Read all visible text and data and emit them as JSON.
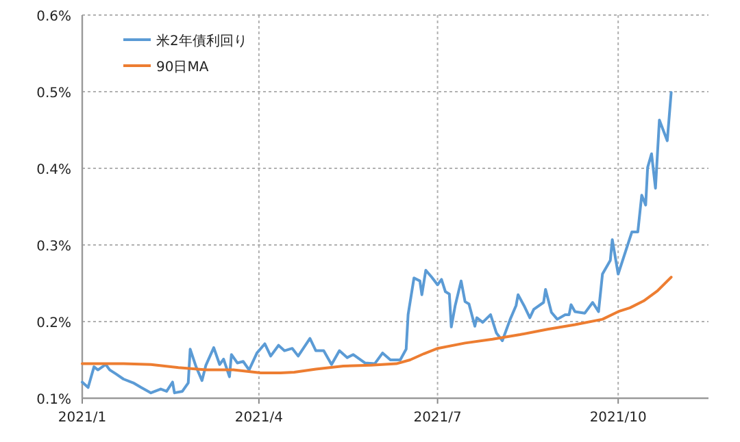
{
  "chart_data": {
    "type": "line",
    "xlim": [
      "2021-01-01",
      "2021-11-16"
    ],
    "ylim": [
      0.1,
      0.6
    ],
    "xticks": [
      {
        "value": "2021-01-01",
        "label": "2021/1"
      },
      {
        "value": "2021-04-01",
        "label": "2021/4"
      },
      {
        "value": "2021-07-01",
        "label": "2021/7"
      },
      {
        "value": "2021-10-01",
        "label": "2021/10"
      }
    ],
    "yticks": [
      {
        "value": 0.1,
        "label": "0.1%"
      },
      {
        "value": 0.2,
        "label": "0.2%"
      },
      {
        "value": 0.3,
        "label": "0.3%"
      },
      {
        "value": 0.4,
        "label": "0.4%"
      },
      {
        "value": 0.5,
        "label": "0.5%"
      },
      {
        "value": 0.6,
        "label": "0.6%"
      }
    ],
    "grid": true,
    "legend": "top left",
    "series": [
      {
        "name": "米2年債利回り",
        "color": "#5b9bd5",
        "x": [
          "2021-01-01",
          "2021-01-04",
          "2021-01-07",
          "2021-01-09",
          "2021-01-13",
          "2021-01-15",
          "2021-01-18",
          "2021-01-22",
          "2021-01-27",
          "2021-01-31",
          "2021-02-05",
          "2021-02-10",
          "2021-02-13",
          "2021-02-16",
          "2021-02-17",
          "2021-02-21",
          "2021-02-24",
          "2021-02-25",
          "2021-02-28",
          "2021-03-03",
          "2021-03-05",
          "2021-03-09",
          "2021-03-12",
          "2021-03-14",
          "2021-03-17",
          "2021-03-18",
          "2021-03-21",
          "2021-03-24",
          "2021-03-27",
          "2021-03-31",
          "2021-04-04",
          "2021-04-07",
          "2021-04-11",
          "2021-04-14",
          "2021-04-18",
          "2021-04-21",
          "2021-04-27",
          "2021-04-30",
          "2021-05-04",
          "2021-05-08",
          "2021-05-12",
          "2021-05-16",
          "2021-05-19",
          "2021-05-25",
          "2021-05-30",
          "2021-06-03",
          "2021-06-07",
          "2021-06-12",
          "2021-06-15",
          "2021-06-16",
          "2021-06-19",
          "2021-06-22",
          "2021-06-23",
          "2021-06-25",
          "2021-06-28",
          "2021-07-01",
          "2021-07-03",
          "2021-07-05",
          "2021-07-07",
          "2021-07-08",
          "2021-07-10",
          "2021-07-13",
          "2021-07-15",
          "2021-07-17",
          "2021-07-20",
          "2021-07-21",
          "2021-07-24",
          "2021-07-28",
          "2021-07-31",
          "2021-08-03",
          "2021-08-07",
          "2021-08-10",
          "2021-08-11",
          "2021-08-14",
          "2021-08-17",
          "2021-08-19",
          "2021-08-24",
          "2021-08-25",
          "2021-08-28",
          "2021-08-31",
          "2021-09-04",
          "2021-09-06",
          "2021-09-07",
          "2021-09-09",
          "2021-09-14",
          "2021-09-18",
          "2021-09-21",
          "2021-09-23",
          "2021-09-27",
          "2021-09-28",
          "2021-10-01",
          "2021-10-08",
          "2021-10-11",
          "2021-10-13",
          "2021-10-15",
          "2021-10-16",
          "2021-10-18",
          "2021-10-20",
          "2021-10-22",
          "2021-10-26",
          "2021-10-28"
        ],
        "values": [
          0.121,
          0.114,
          0.141,
          0.137,
          0.144,
          0.137,
          0.132,
          0.125,
          0.12,
          0.114,
          0.107,
          0.112,
          0.109,
          0.121,
          0.107,
          0.109,
          0.12,
          0.164,
          0.141,
          0.123,
          0.143,
          0.166,
          0.144,
          0.151,
          0.128,
          0.157,
          0.146,
          0.148,
          0.137,
          0.159,
          0.171,
          0.155,
          0.169,
          0.162,
          0.165,
          0.155,
          0.178,
          0.162,
          0.162,
          0.144,
          0.162,
          0.153,
          0.157,
          0.146,
          0.145,
          0.159,
          0.15,
          0.15,
          0.164,
          0.209,
          0.257,
          0.253,
          0.235,
          0.267,
          0.258,
          0.248,
          0.255,
          0.239,
          0.236,
          0.193,
          0.221,
          0.253,
          0.226,
          0.223,
          0.194,
          0.205,
          0.199,
          0.209,
          0.185,
          0.175,
          0.203,
          0.221,
          0.235,
          0.221,
          0.205,
          0.216,
          0.225,
          0.242,
          0.212,
          0.203,
          0.209,
          0.209,
          0.222,
          0.213,
          0.211,
          0.225,
          0.213,
          0.262,
          0.28,
          0.307,
          0.262,
          0.317,
          0.317,
          0.365,
          0.352,
          0.401,
          0.419,
          0.374,
          0.463,
          0.436,
          0.499
        ]
      },
      {
        "name": "90日MA",
        "color": "#ed7d31",
        "x": [
          "2021-01-01",
          "2021-01-22",
          "2021-02-05",
          "2021-02-19",
          "2021-03-05",
          "2021-03-19",
          "2021-04-02",
          "2021-04-12",
          "2021-04-19",
          "2021-04-30",
          "2021-05-14",
          "2021-05-28",
          "2021-06-10",
          "2021-06-17",
          "2021-06-24",
          "2021-07-01",
          "2021-07-15",
          "2021-07-29",
          "2021-08-12",
          "2021-08-26",
          "2021-09-09",
          "2021-09-23",
          "2021-10-01",
          "2021-10-07",
          "2021-10-14",
          "2021-10-21",
          "2021-10-28"
        ],
        "values": [
          0.145,
          0.145,
          0.144,
          0.14,
          0.137,
          0.137,
          0.133,
          0.133,
          0.134,
          0.138,
          0.142,
          0.143,
          0.145,
          0.15,
          0.158,
          0.165,
          0.172,
          0.177,
          0.183,
          0.19,
          0.196,
          0.203,
          0.213,
          0.218,
          0.227,
          0.24,
          0.258
        ]
      }
    ]
  }
}
